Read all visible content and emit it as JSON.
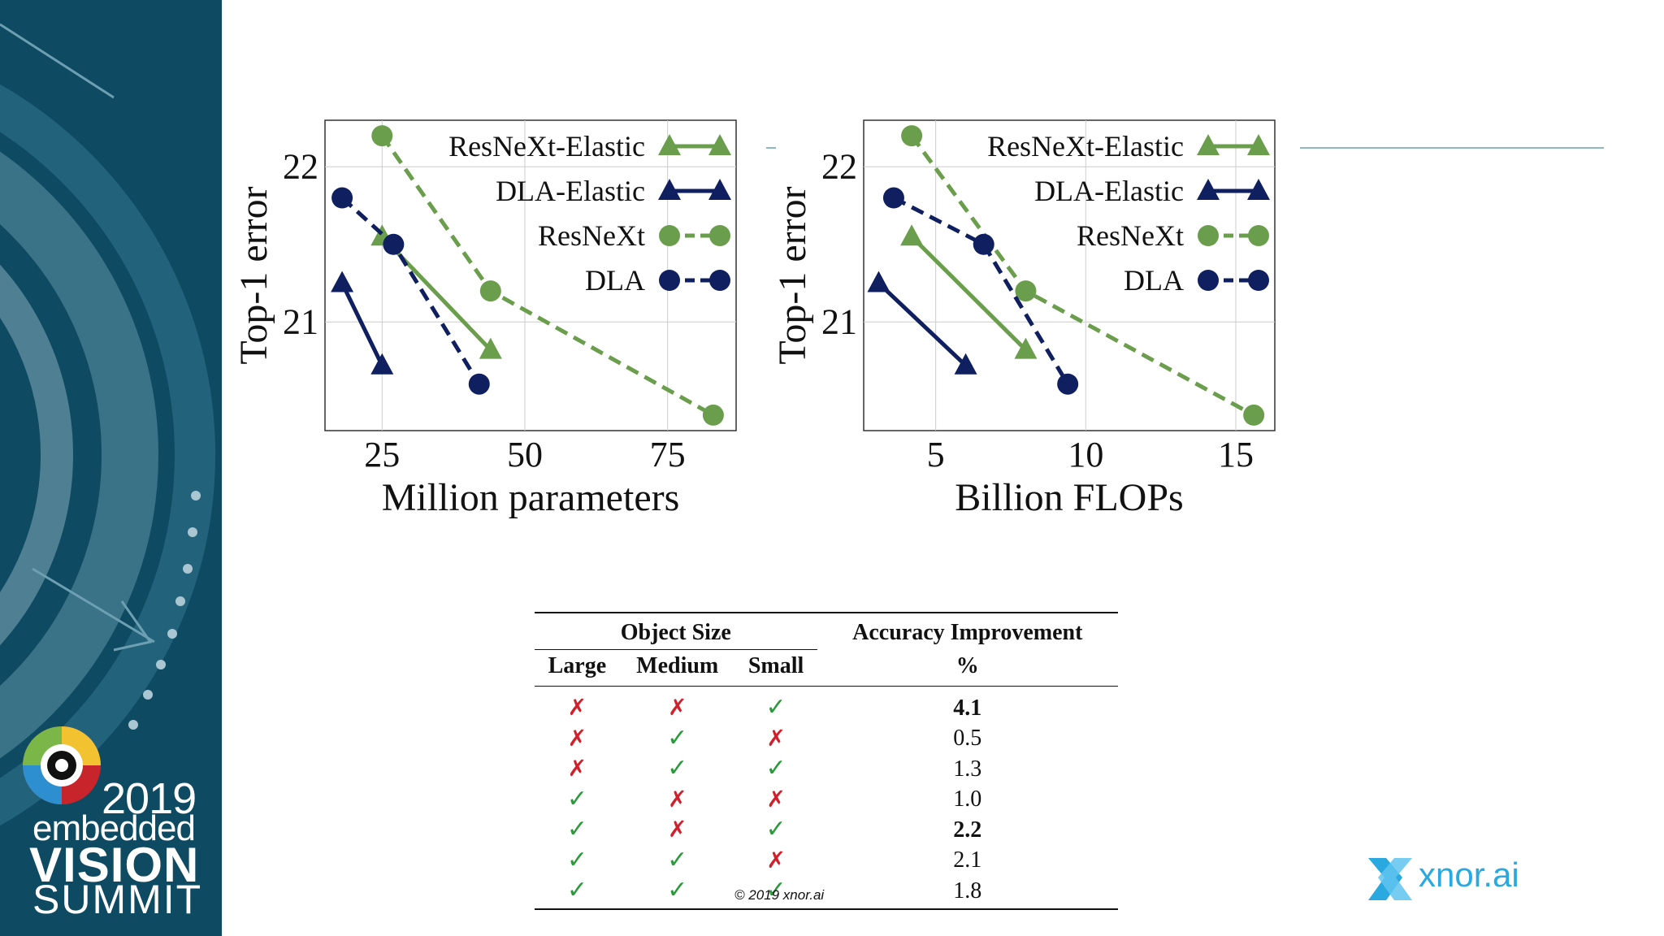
{
  "colors": {
    "green": "#6a9e4c",
    "navy": "#0f1f5f",
    "sidebar_bg": "#0e4a62",
    "check_green": "#2a9a3a",
    "cross_red": "#d21f2c",
    "xnor_blue": "#29a9e0"
  },
  "chart_data": [
    {
      "type": "line",
      "xlabel": "Million parameters",
      "ylabel": "Top-1 error",
      "xlim": [
        15,
        87
      ],
      "ylim": [
        20.3,
        22.3
      ],
      "xticks": [
        25,
        50,
        75
      ],
      "yticks": [
        21,
        22
      ],
      "grid": true,
      "legend": "top-right",
      "series": [
        {
          "name": "ResNeXt-Elastic",
          "style": "solid",
          "marker": "triangle",
          "color": "#6a9e4c",
          "x": [
            25,
            44
          ],
          "y": [
            21.55,
            20.82
          ]
        },
        {
          "name": "DLA-Elastic",
          "style": "solid",
          "marker": "triangle",
          "color": "#0f1f5f",
          "x": [
            18,
            25
          ],
          "y": [
            21.25,
            20.72
          ]
        },
        {
          "name": "ResNeXt",
          "style": "dashed",
          "marker": "circle",
          "color": "#6a9e4c",
          "x": [
            25,
            44,
            83
          ],
          "y": [
            22.2,
            21.2,
            20.4
          ]
        },
        {
          "name": "DLA",
          "style": "dashed",
          "marker": "circle",
          "color": "#0f1f5f",
          "x": [
            18,
            27,
            42
          ],
          "y": [
            21.8,
            21.5,
            20.6
          ]
        }
      ]
    },
    {
      "type": "line",
      "xlabel": "Billion FLOPs",
      "ylabel": "Top-1 error",
      "xlim": [
        2.6,
        16.3
      ],
      "ylim": [
        20.3,
        22.3
      ],
      "xticks": [
        5,
        10,
        15
      ],
      "yticks": [
        21,
        22
      ],
      "grid": true,
      "legend": "top-right",
      "series": [
        {
          "name": "ResNeXt-Elastic",
          "style": "solid",
          "marker": "triangle",
          "color": "#6a9e4c",
          "x": [
            4.2,
            8.0
          ],
          "y": [
            21.55,
            20.82
          ]
        },
        {
          "name": "DLA-Elastic",
          "style": "solid",
          "marker": "triangle",
          "color": "#0f1f5f",
          "x": [
            3.1,
            6.0
          ],
          "y": [
            21.25,
            20.72
          ]
        },
        {
          "name": "ResNeXt",
          "style": "dashed",
          "marker": "circle",
          "color": "#6a9e4c",
          "x": [
            4.2,
            8.0,
            15.6
          ],
          "y": [
            22.2,
            21.2,
            20.4
          ]
        },
        {
          "name": "DLA",
          "style": "dashed",
          "marker": "circle",
          "color": "#0f1f5f",
          "x": [
            3.6,
            6.6,
            9.4
          ],
          "y": [
            21.8,
            21.5,
            20.6
          ]
        }
      ]
    }
  ],
  "table": {
    "group_header": "Object Size",
    "columns": [
      "Large",
      "Medium",
      "Small"
    ],
    "metric_header": "Accuracy Improvement",
    "metric_unit": "%",
    "rows": [
      {
        "large": "✗",
        "medium": "✗",
        "small": "✓",
        "value": "4.1",
        "bold": true
      },
      {
        "large": "✗",
        "medium": "✓",
        "small": "✗",
        "value": "0.5",
        "bold": false
      },
      {
        "large": "✗",
        "medium": "✓",
        "small": "✓",
        "value": "1.3",
        "bold": false
      },
      {
        "large": "✓",
        "medium": "✗",
        "small": "✗",
        "value": "1.0",
        "bold": false
      },
      {
        "large": "✓",
        "medium": "✗",
        "small": "✓",
        "value": "2.2",
        "bold": true
      },
      {
        "large": "✓",
        "medium": "✓",
        "small": "✗",
        "value": "2.1",
        "bold": false
      },
      {
        "large": "✓",
        "medium": "✓",
        "small": "✓",
        "value": "1.8",
        "bold": false
      }
    ]
  },
  "footer": {
    "copyright": "© 2019 xnor.ai"
  },
  "branding": {
    "summit_year": "2019",
    "summit_line1": "embedded",
    "summit_line2": "VISION",
    "summit_line3": "SUMMIT",
    "company_name": "xnor.ai"
  }
}
